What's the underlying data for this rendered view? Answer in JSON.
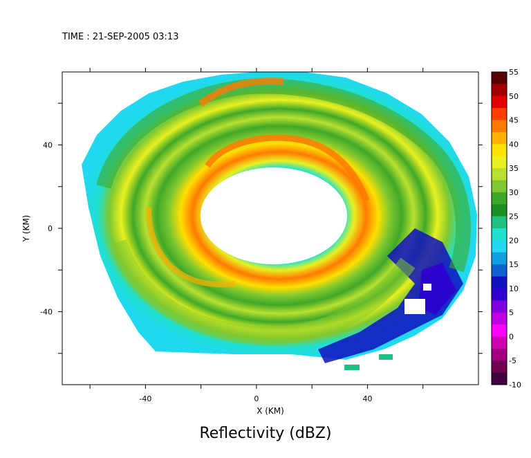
{
  "timestamp": "TIME : 21-SEP-2005 03:13",
  "chart_data": {
    "type": "heatmap",
    "title": "Reflectivity (dBZ)",
    "xlabel": "X (KM)",
    "ylabel": "Y (KM)",
    "xlim": [
      -70,
      80
    ],
    "ylim": [
      -75,
      75
    ],
    "x_ticks": [
      -40,
      0,
      40
    ],
    "y_ticks": [
      -40,
      0,
      40
    ],
    "colorbar": {
      "min": -10,
      "max": 55,
      "ticks": [
        "55",
        "50",
        "45",
        "40",
        "35",
        "30",
        "25",
        "20",
        "15",
        "10",
        "5",
        "0",
        "-5",
        "-10"
      ],
      "colors": [
        "#5a0000",
        "#a00000",
        "#e00000",
        "#ff4000",
        "#ff7a00",
        "#ffb000",
        "#ffe000",
        "#e8f020",
        "#b8e030",
        "#80c830",
        "#40a828",
        "#1c9020",
        "#20c080",
        "#20e0d0",
        "#20d8f0",
        "#10a0e0",
        "#1060d0",
        "#1010c0",
        "#3000d0",
        "#8000e0",
        "#c000e0",
        "#ff00ff",
        "#d000b0",
        "#a00080",
        "#700050",
        "#400040"
      ]
    },
    "description_values": {
      "eye_center_km": [
        14,
        11
      ],
      "eye_radius_km": [
        26,
        17
      ],
      "max_reflectivity_dbz": 45
    }
  }
}
